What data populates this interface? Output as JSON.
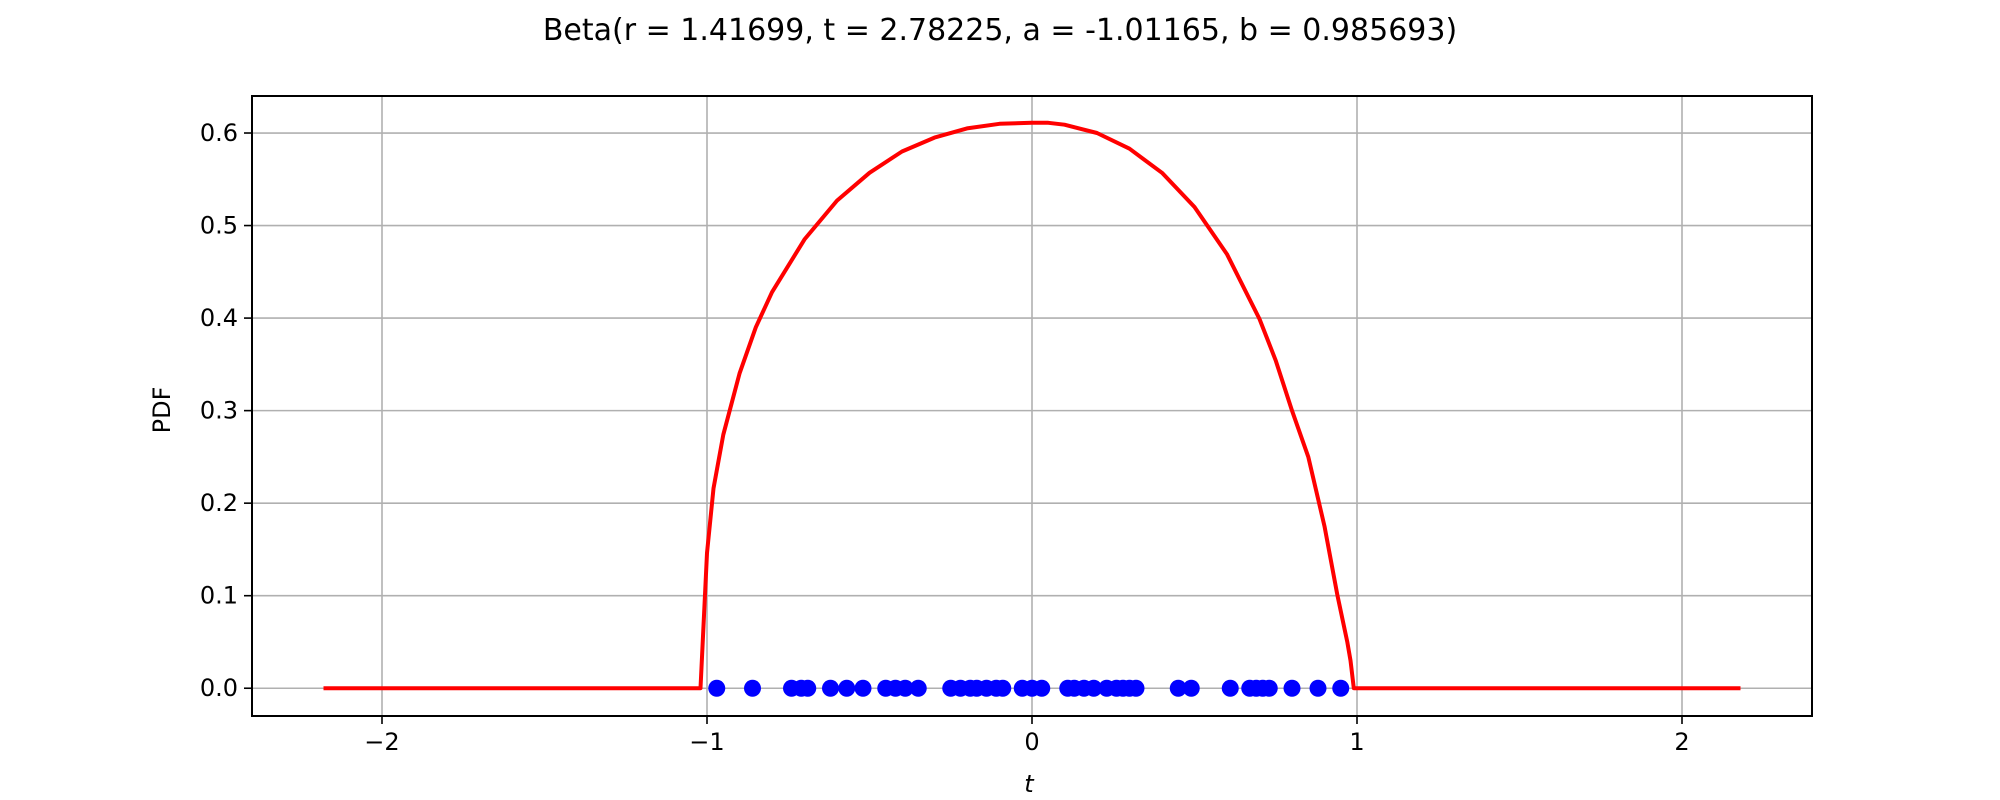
{
  "chart_data": {
    "type": "line",
    "title": "Beta(r = 1.41699, t = 2.78225, a = -1.01165, b = 0.985693)",
    "xlabel": "t",
    "ylabel": "PDF",
    "xlim": [
      -2.4,
      2.4
    ],
    "ylim": [
      -0.03,
      0.64
    ],
    "grid": true,
    "xticks": [
      -2,
      -1,
      0,
      1,
      2
    ],
    "xtick_labels": [
      "−2",
      "−1",
      "0",
      "1",
      "2"
    ],
    "yticks": [
      0.0,
      0.1,
      0.2,
      0.3,
      0.4,
      0.5,
      0.6
    ],
    "ytick_labels": [
      "0.0",
      "0.1",
      "0.2",
      "0.3",
      "0.4",
      "0.5",
      "0.6"
    ],
    "distribution": {
      "r": 1.41699,
      "t": 2.78225,
      "a": -1.01165,
      "b": 0.985693
    },
    "curve_range": [
      -2.18,
      2.18
    ],
    "colors": {
      "pdf_line": "#ff0000",
      "samples": "#0000ff",
      "grid": "#b0b0b0",
      "frame": "#000000"
    },
    "series": [
      {
        "kind": "pdf-line",
        "x": [
          -2.18,
          -1.02,
          -1.0,
          -0.98,
          -0.95,
          -0.9,
          -0.85,
          -0.8,
          -0.7,
          -0.6,
          -0.5,
          -0.4,
          -0.3,
          -0.2,
          -0.1,
          0.0,
          0.05,
          0.1,
          0.2,
          0.3,
          0.4,
          0.5,
          0.6,
          0.7,
          0.75,
          0.8,
          0.85,
          0.9,
          0.94,
          0.97,
          0.98,
          0.99,
          2.18
        ],
        "y": [
          0.0,
          0.0,
          0.146,
          0.216,
          0.274,
          0.34,
          0.39,
          0.428,
          0.485,
          0.527,
          0.557,
          0.58,
          0.595,
          0.605,
          0.61,
          0.611,
          0.611,
          0.609,
          0.6,
          0.583,
          0.557,
          0.52,
          0.469,
          0.399,
          0.354,
          0.3,
          0.25,
          0.175,
          0.1,
          0.05,
          0.03,
          0.0,
          0.0
        ]
      },
      {
        "kind": "samples",
        "x": [
          -0.97,
          -0.86,
          -0.74,
          -0.71,
          -0.69,
          -0.62,
          -0.57,
          -0.52,
          -0.45,
          -0.42,
          -0.39,
          -0.35,
          -0.25,
          -0.22,
          -0.19,
          -0.17,
          -0.14,
          -0.11,
          -0.09,
          -0.03,
          0.0,
          0.03,
          0.11,
          0.13,
          0.16,
          0.19,
          0.23,
          0.26,
          0.28,
          0.3,
          0.32,
          0.45,
          0.49,
          0.61,
          0.67,
          0.69,
          0.71,
          0.73,
          0.8,
          0.88,
          0.95
        ],
        "y": [
          0,
          0,
          0,
          0,
          0,
          0,
          0,
          0,
          0,
          0,
          0,
          0,
          0,
          0,
          0,
          0,
          0,
          0,
          0,
          0,
          0,
          0,
          0,
          0,
          0,
          0,
          0,
          0,
          0,
          0,
          0,
          0,
          0,
          0,
          0,
          0,
          0,
          0,
          0,
          0,
          0
        ]
      }
    ]
  }
}
